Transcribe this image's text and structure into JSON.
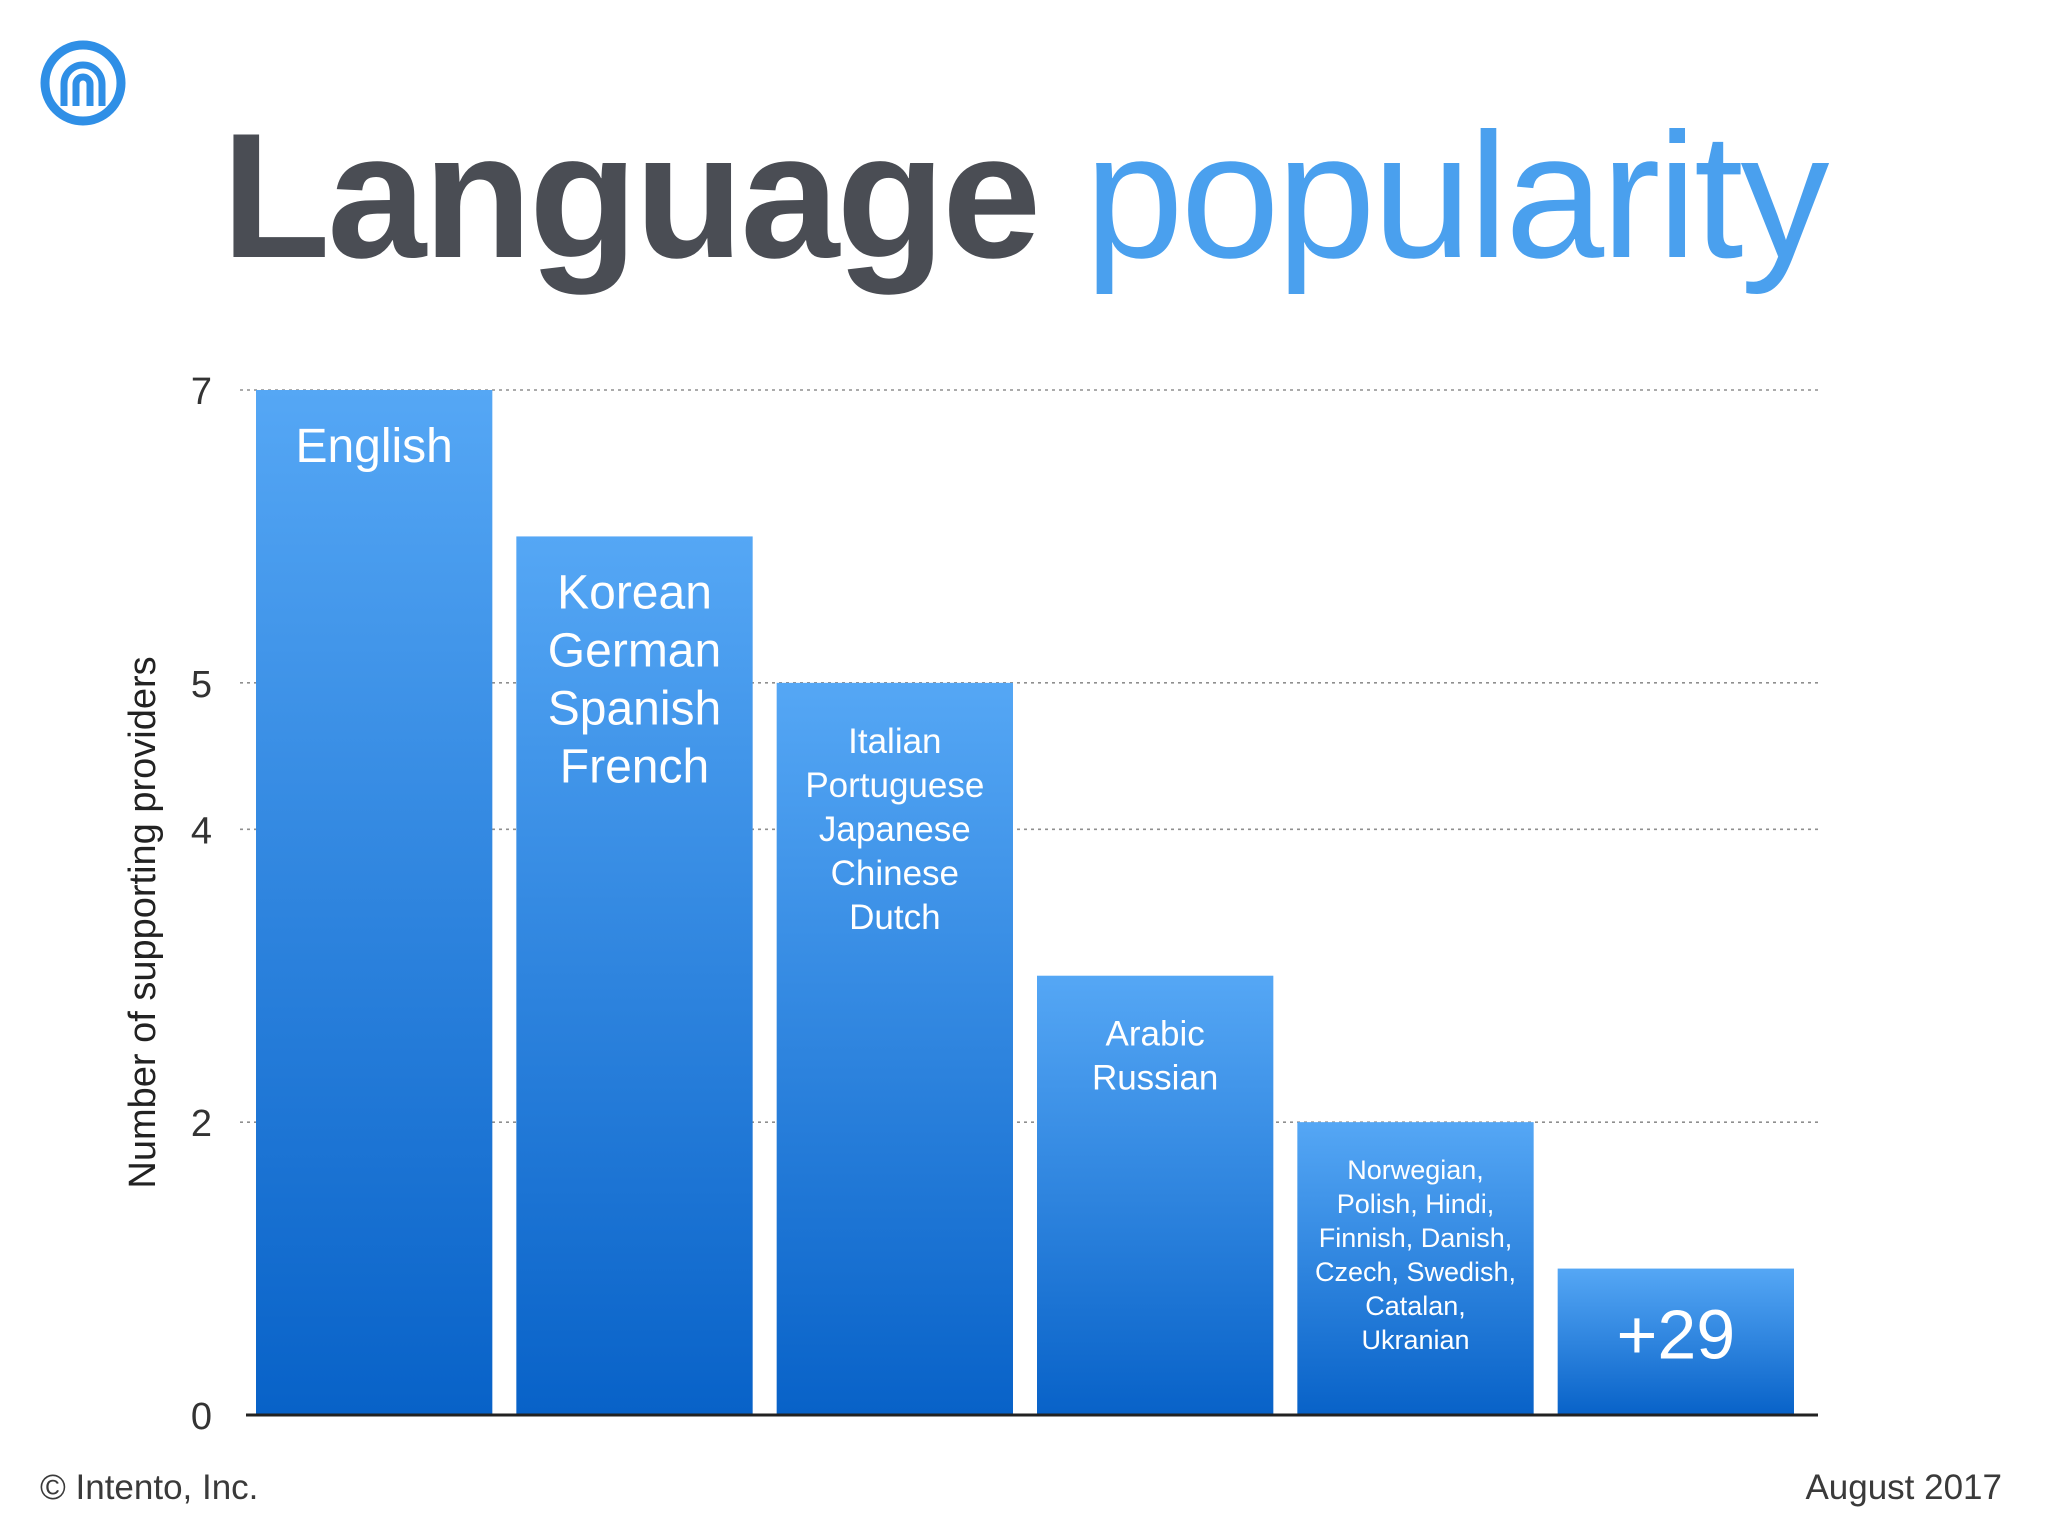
{
  "title": {
    "main": "Language",
    "accent": "popularity"
  },
  "footer": {
    "copyright": "© Intento, Inc.",
    "date": "August 2017"
  },
  "logo": {
    "icon": "intento-logo-icon",
    "color": "#2f8fe6"
  },
  "colors": {
    "bar_top": "#55a7f5",
    "bar_bottom": "#0862c8",
    "bar_label": "#ffffff",
    "gridline": "#8f8f8f",
    "axis": "#222222",
    "tick_label": "#333333"
  },
  "chart_data": {
    "type": "bar",
    "title": "",
    "xlabel": "",
    "ylabel": "Number of supporting providers",
    "ylim": [
      0,
      7
    ],
    "y_ticks": [
      "0",
      "2",
      "4",
      "5",
      "7"
    ],
    "grid": true,
    "categories": [
      "English",
      "Korean German Spanish French",
      "Italian Portuguese Japanese Chinese Dutch",
      "Arabic Russian",
      "Norwegian, Polish, Hindi, Finnish, Danish, Czech, Swedish, Catalan, Ukranian",
      "+29"
    ],
    "values": [
      7,
      6,
      5,
      3,
      2,
      1
    ],
    "bar_labels": [
      [
        "English"
      ],
      [
        "Korean",
        "German",
        "Spanish",
        "French"
      ],
      [
        "Italian",
        "Portuguese",
        "Japanese",
        "Chinese",
        "Dutch"
      ],
      [
        "Arabic",
        "Russian"
      ],
      [
        "Norwegian,",
        "Polish, Hindi,",
        "Finnish, Danish,",
        "Czech, Swedish,",
        "Catalan,",
        "Ukranian"
      ],
      [
        "+29"
      ]
    ]
  }
}
